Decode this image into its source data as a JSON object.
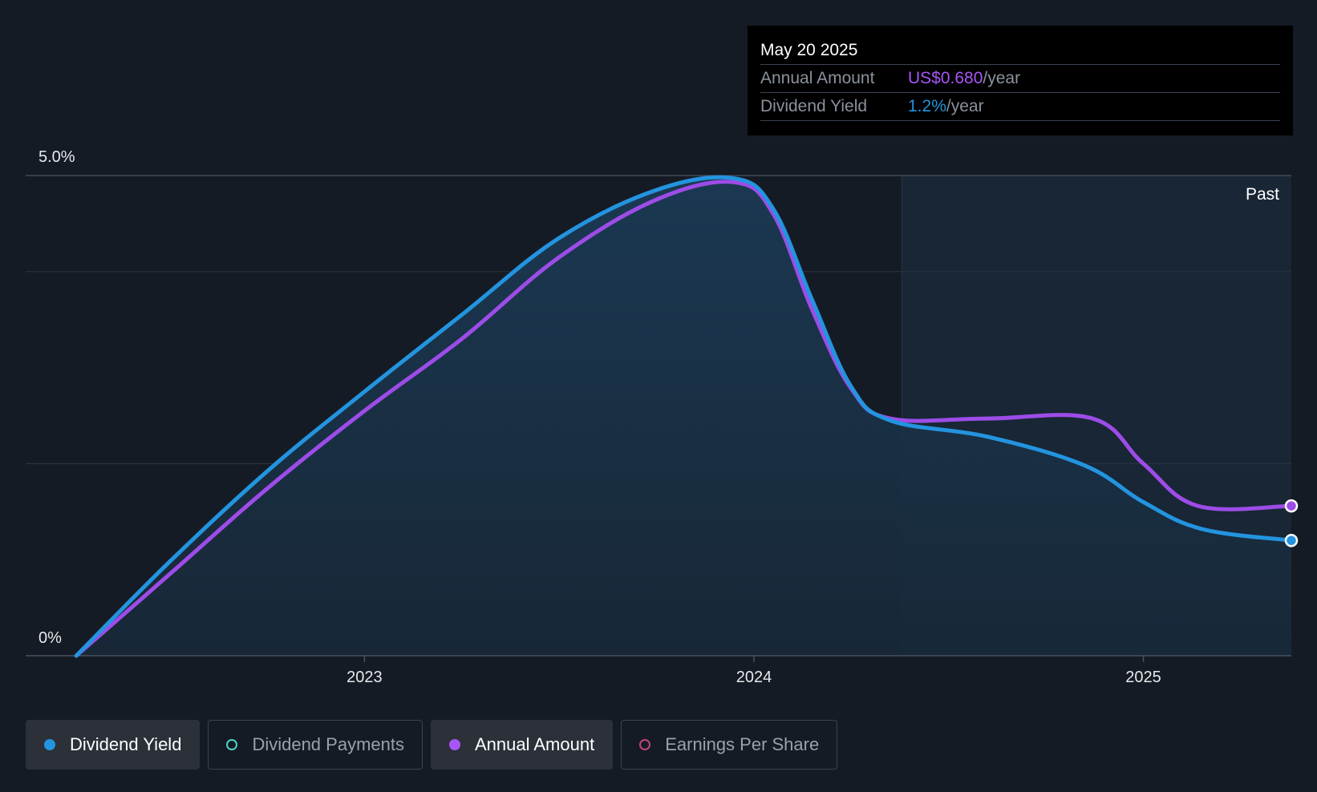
{
  "chart_data": {
    "type": "line",
    "y_axis": {
      "top_label": "5.0%",
      "bottom_label": "0%",
      "ylim": [
        0,
        5.0
      ]
    },
    "x_axis": {
      "ticks": [
        "2023",
        "2024",
        "2025"
      ],
      "tick_values": [
        2023.0,
        2024.0,
        2025.0
      ],
      "xlim": [
        2022.13,
        2025.38
      ]
    },
    "past_label": "Past",
    "past_start": 2024.38,
    "series": [
      {
        "name": "Dividend Yield",
        "color": "#2394df",
        "points": [
          [
            2022.26,
            0
          ],
          [
            2022.5,
            0.98
          ],
          [
            2022.75,
            1.92
          ],
          [
            2023.0,
            2.75
          ],
          [
            2023.25,
            3.55
          ],
          [
            2023.5,
            4.35
          ],
          [
            2023.75,
            4.85
          ],
          [
            2023.95,
            4.97
          ],
          [
            2024.05,
            4.65
          ],
          [
            2024.15,
            3.7
          ],
          [
            2024.25,
            2.8
          ],
          [
            2024.35,
            2.45
          ],
          [
            2024.6,
            2.28
          ],
          [
            2024.85,
            1.98
          ],
          [
            2025.0,
            1.6
          ],
          [
            2025.15,
            1.32
          ],
          [
            2025.38,
            1.2
          ]
        ]
      },
      {
        "name": "Annual Amount",
        "color": "#9d4ce8",
        "points": [
          [
            2022.26,
            0
          ],
          [
            2022.5,
            0.85
          ],
          [
            2022.75,
            1.74
          ],
          [
            2023.0,
            2.55
          ],
          [
            2023.25,
            3.3
          ],
          [
            2023.5,
            4.15
          ],
          [
            2023.75,
            4.75
          ],
          [
            2023.95,
            4.93
          ],
          [
            2024.05,
            4.6
          ],
          [
            2024.15,
            3.6
          ],
          [
            2024.25,
            2.78
          ],
          [
            2024.35,
            2.47
          ],
          [
            2024.6,
            2.47
          ],
          [
            2024.87,
            2.47
          ],
          [
            2025.0,
            2.0
          ],
          [
            2025.14,
            1.56
          ],
          [
            2025.38,
            1.56
          ]
        ]
      }
    ]
  },
  "tooltip": {
    "date": "May 20 2025",
    "rows": [
      {
        "label": "Annual Amount",
        "value": "US$0.680",
        "unit": "/year",
        "color": "#a855f7"
      },
      {
        "label": "Dividend Yield",
        "value": "1.2%",
        "unit": "/year",
        "color": "#2394df"
      }
    ]
  },
  "legend": [
    {
      "label": "Dividend Yield",
      "color": "#2394df",
      "active": true
    },
    {
      "label": "Dividend Payments",
      "color": "#4fd1c5",
      "active": false
    },
    {
      "label": "Annual Amount",
      "color": "#a855f7",
      "active": true
    },
    {
      "label": "Earnings Per Share",
      "color": "#c0457a",
      "active": false
    }
  ]
}
